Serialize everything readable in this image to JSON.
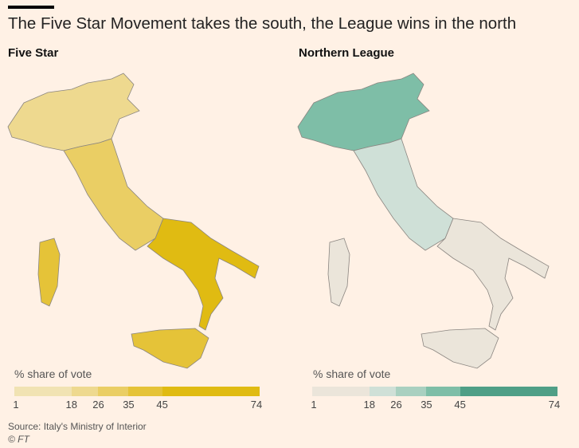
{
  "title": "The Five Star Movement takes the south, the League wins in the north",
  "panels": [
    {
      "name": "Five Star",
      "legend_label": "% share of vote",
      "ticks": [
        "1",
        "18",
        "26",
        "35",
        "45",
        "74"
      ],
      "tick_values": [
        1,
        18,
        26,
        35,
        45,
        74
      ],
      "colors": [
        "#f1e3b3",
        "#eed98f",
        "#eace64",
        "#e5c338",
        "#e0bb12"
      ],
      "regional_level": {
        "north": 1,
        "center": 2,
        "south": 4,
        "islands": 3
      }
    },
    {
      "name": "Northern League",
      "legend_label": "% share of vote",
      "ticks": [
        "1",
        "18",
        "26",
        "35",
        "45",
        "74"
      ],
      "tick_values": [
        1,
        18,
        26,
        35,
        45,
        74
      ],
      "colors": [
        "#ebe5da",
        "#cfe0d7",
        "#a9d0c0",
        "#7ebea7",
        "#4f9f86"
      ],
      "regional_level": {
        "north": 3,
        "center": 1,
        "south": 0,
        "islands": 0
      }
    }
  ],
  "source": "Source: Italy's Ministry of Interior",
  "credit": "© FT"
}
